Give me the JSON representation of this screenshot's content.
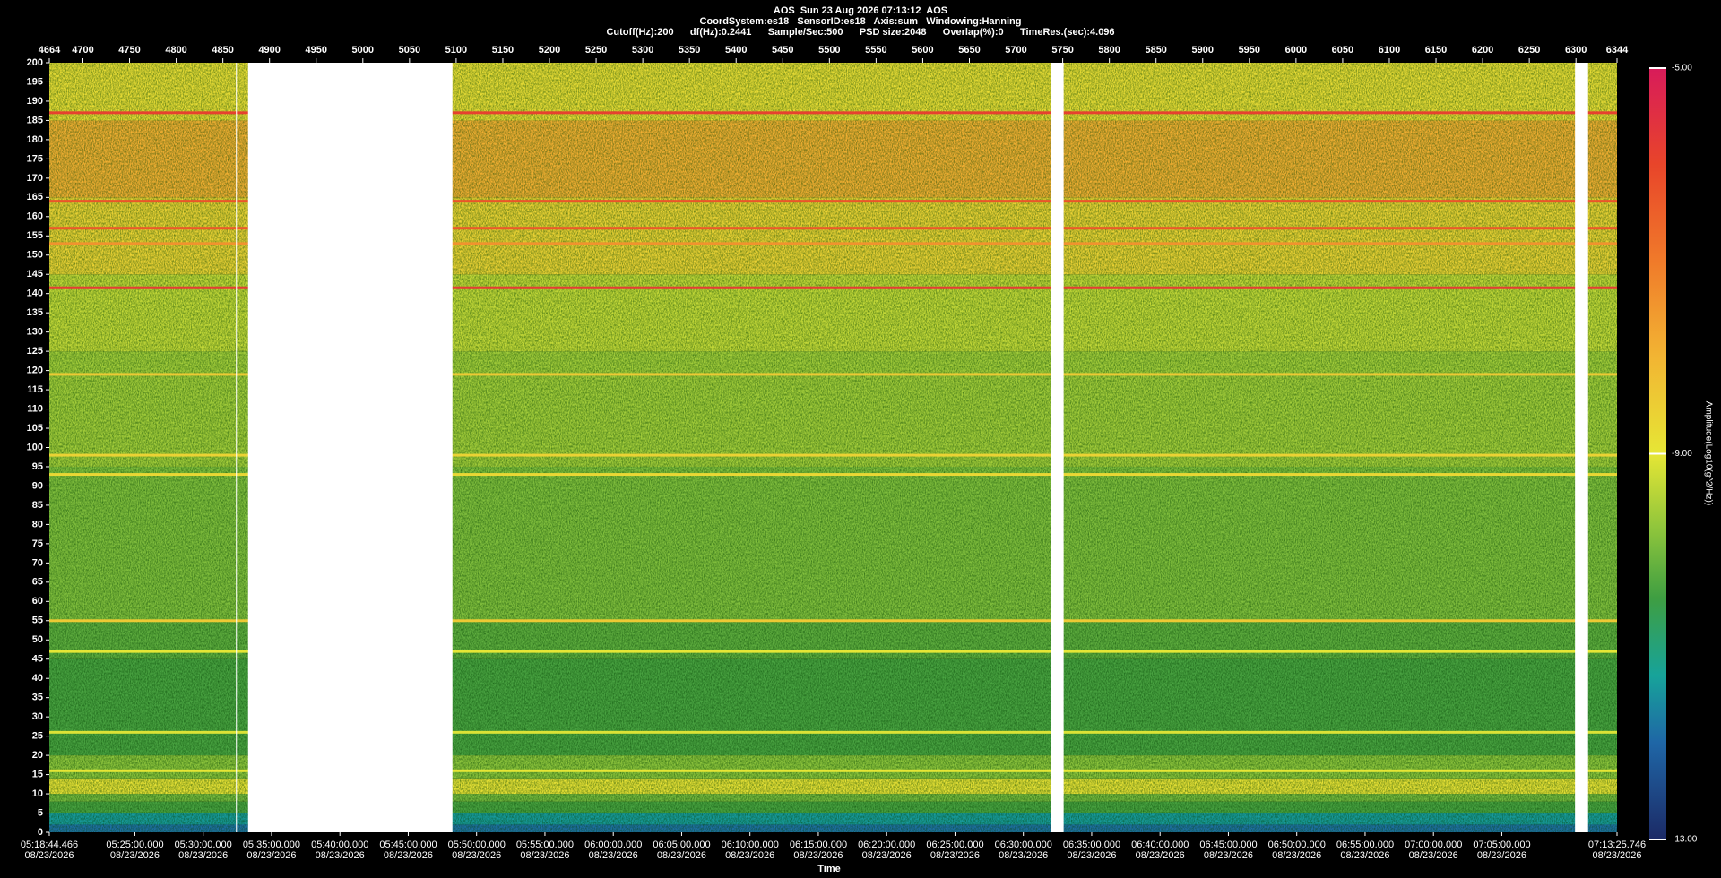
{
  "chart_data": {
    "type": "spectrogram",
    "title": "AOS  Sun 23 Aug 2026 07:13:12  AOS",
    "subtitle": "CoordSystem:es18   SensorID:es18   Axis:sum   Windowing:Hanning",
    "info": "Cutoff(Hz):200      df(Hz):0.2441      Sample/Sec:500      PSD size:2048      Overlap(%):0      TimeRes.(sec):4.096",
    "x_label": "Time",
    "colorbar_label": "Amplitude(Log10(g^2/Hz))",
    "xlim": [
      4664,
      6344
    ],
    "xticks": [
      4664,
      4700,
      4750,
      4800,
      4850,
      4900,
      4950,
      5000,
      5050,
      5100,
      5150,
      5200,
      5250,
      5300,
      5350,
      5400,
      5450,
      5500,
      5550,
      5600,
      5650,
      5700,
      5750,
      5800,
      5850,
      5900,
      5950,
      6000,
      6050,
      6100,
      6150,
      6200,
      6250,
      6300,
      6344
    ],
    "x_time_ticks": [
      {
        "value": 4664,
        "label": "05:18:44.466"
      },
      {
        "value": 4755.68,
        "label": "05:25:00.000"
      },
      {
        "value": 4828.92,
        "label": "05:30:00.000"
      },
      {
        "value": 4902.16,
        "label": "05:35:00.000"
      },
      {
        "value": 4975.41,
        "label": "05:40:00.000"
      },
      {
        "value": 5048.65,
        "label": "05:45:00.000"
      },
      {
        "value": 5121.89,
        "label": "05:50:00.000"
      },
      {
        "value": 5195.13,
        "label": "05:55:00.000"
      },
      {
        "value": 5268.38,
        "label": "06:00:00.000"
      },
      {
        "value": 5341.62,
        "label": "06:05:00.000"
      },
      {
        "value": 5414.86,
        "label": "06:10:00.000"
      },
      {
        "value": 5488.1,
        "label": "06:15:00.000"
      },
      {
        "value": 5561.34,
        "label": "06:20:00.000"
      },
      {
        "value": 5634.59,
        "label": "06:25:00.000"
      },
      {
        "value": 5707.83,
        "label": "06:30:00.000"
      },
      {
        "value": 5781.07,
        "label": "06:35:00.000"
      },
      {
        "value": 5854.31,
        "label": "06:40:00.000"
      },
      {
        "value": 5927.55,
        "label": "06:45:00.000"
      },
      {
        "value": 6000.8,
        "label": "06:50:00.000"
      },
      {
        "value": 6074.04,
        "label": "06:55:00.000"
      },
      {
        "value": 6147.28,
        "label": "07:00:00.000"
      },
      {
        "value": 6220.52,
        "label": "07:05:00.000"
      },
      {
        "value": 6344,
        "label": "07:13:25.746"
      }
    ],
    "x_time_dates": [
      "08/23/2026",
      "08/23/2026",
      "08/23/2026",
      "08/23/2026",
      "08/23/2026",
      "08/23/2026",
      "08/23/2026",
      "08/23/2026",
      "08/23/2026",
      "08/23/2026",
      "08/23/2026",
      "08/23/2026",
      "08/23/2026",
      "08/23/2026",
      "08/23/2026",
      "08/23/2026",
      "08/23/2026",
      "08/23/2026",
      "08/23/2026",
      "08/23/2026",
      "08/23/2026",
      "08/23/2026",
      "08/23/2026"
    ],
    "ylim": [
      0,
      200
    ],
    "yticks": [
      0,
      5,
      10,
      15,
      20,
      25,
      30,
      35,
      40,
      45,
      50,
      55,
      60,
      65,
      70,
      75,
      80,
      85,
      90,
      95,
      100,
      105,
      110,
      115,
      120,
      125,
      130,
      135,
      140,
      145,
      150,
      155,
      160,
      165,
      170,
      175,
      180,
      185,
      190,
      195,
      200
    ],
    "clim": [
      -13,
      -5
    ],
    "cticks": [
      {
        "value": -5,
        "label": "-5.00"
      },
      {
        "value": -9,
        "label": "-9.00"
      },
      {
        "value": -13,
        "label": "-13.00"
      }
    ],
    "colorscale": [
      {
        "value": -13,
        "color": "#1c2a66"
      },
      {
        "value": -12,
        "color": "#1f66a6"
      },
      {
        "value": -11.3,
        "color": "#17a39a"
      },
      {
        "value": -10.5,
        "color": "#3e9e42"
      },
      {
        "value": -9.8,
        "color": "#8cc43c"
      },
      {
        "value": -9,
        "color": "#e6e635"
      },
      {
        "value": -8,
        "color": "#f2b533"
      },
      {
        "value": -7,
        "color": "#f07a2a"
      },
      {
        "value": -6,
        "color": "#e8452a"
      },
      {
        "value": -5,
        "color": "#d81b5a"
      }
    ],
    "bands": [
      {
        "from": 0,
        "to": 2,
        "amplitude": -11.9
      },
      {
        "from": 2,
        "to": 5,
        "amplitude": -11.4
      },
      {
        "from": 5,
        "to": 8,
        "amplitude": -10.4
      },
      {
        "from": 8,
        "to": 10,
        "amplitude": -10.0
      },
      {
        "from": 10,
        "to": 14,
        "amplitude": -8.9
      },
      {
        "from": 14,
        "to": 20,
        "amplitude": -9.8
      },
      {
        "from": 20,
        "to": 45,
        "amplitude": -10.4
      },
      {
        "from": 45,
        "to": 55,
        "amplitude": -10.2
      },
      {
        "from": 55,
        "to": 95,
        "amplitude": -9.9
      },
      {
        "from": 95,
        "to": 125,
        "amplitude": -9.6
      },
      {
        "from": 125,
        "to": 145,
        "amplitude": -9.3
      },
      {
        "from": 145,
        "to": 165,
        "amplitude": -8.6
      },
      {
        "from": 165,
        "to": 185,
        "amplitude": -7.9
      },
      {
        "from": 185,
        "to": 200,
        "amplitude": -8.8
      }
    ],
    "lines": [
      {
        "freq": 187,
        "amplitude": -5.9
      },
      {
        "freq": 164,
        "amplitude": -6.3
      },
      {
        "freq": 157,
        "amplitude": -6.4
      },
      {
        "freq": 153,
        "amplitude": -7.4
      },
      {
        "freq": 141.5,
        "amplitude": -5.8
      },
      {
        "freq": 119,
        "amplitude": -8.4
      },
      {
        "freq": 98,
        "amplitude": -8.6
      },
      {
        "freq": 93,
        "amplitude": -8.7
      },
      {
        "freq": 55,
        "amplitude": -8.4
      },
      {
        "freq": 47,
        "amplitude": -9.0
      },
      {
        "freq": 26,
        "amplitude": -9.1
      },
      {
        "freq": 16,
        "amplitude": -9.0
      }
    ],
    "gaps": [
      [
        4864,
        4865
      ],
      [
        4877,
        5096
      ],
      [
        5737,
        5751
      ],
      [
        6299,
        6313
      ]
    ]
  }
}
